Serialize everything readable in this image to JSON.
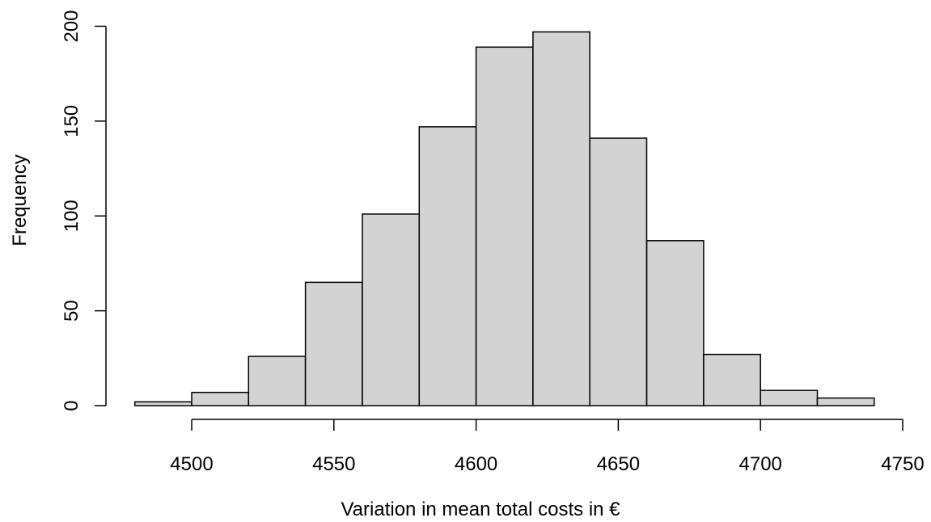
{
  "chart_data": {
    "type": "bar",
    "title": "",
    "xlabel": "Variation in mean total costs in €",
    "ylabel": "Frequency",
    "bins": [
      {
        "start": 4480,
        "end": 4500,
        "count": 2
      },
      {
        "start": 4500,
        "end": 4520,
        "count": 7
      },
      {
        "start": 4520,
        "end": 4540,
        "count": 26
      },
      {
        "start": 4540,
        "end": 4560,
        "count": 65
      },
      {
        "start": 4560,
        "end": 4580,
        "count": 101
      },
      {
        "start": 4580,
        "end": 4600,
        "count": 147
      },
      {
        "start": 4600,
        "end": 4620,
        "count": 189
      },
      {
        "start": 4620,
        "end": 4640,
        "count": 197
      },
      {
        "start": 4640,
        "end": 4660,
        "count": 141
      },
      {
        "start": 4660,
        "end": 4680,
        "count": 87
      },
      {
        "start": 4680,
        "end": 4700,
        "count": 27
      },
      {
        "start": 4700,
        "end": 4720,
        "count": 8
      },
      {
        "start": 4720,
        "end": 4740,
        "count": 4
      }
    ],
    "x_ticks": [
      4500,
      4550,
      4600,
      4650,
      4700,
      4750
    ],
    "y_ticks": [
      0,
      50,
      100,
      150,
      200
    ],
    "xlim": [
      4500,
      4750
    ],
    "ylim": [
      0,
      200
    ],
    "grid": false
  }
}
